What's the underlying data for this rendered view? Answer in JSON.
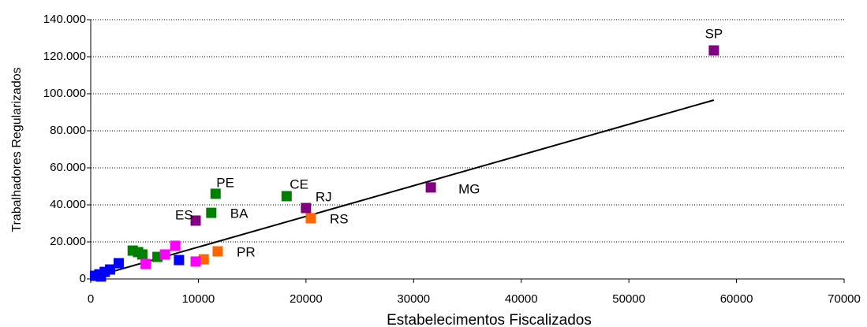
{
  "chart_data": {
    "type": "scatter",
    "x_label": "Estabelecimentos Fiscalizados",
    "y_label": "Trabalhadores Regularizados",
    "xlim": [
      0,
      70000
    ],
    "ylim": [
      0,
      140000
    ],
    "xticks": [
      0,
      10000,
      20000,
      30000,
      40000,
      50000,
      60000,
      70000
    ],
    "yticks": [
      0,
      {
        "value": 20000,
        "label": "20.000"
      },
      {
        "value": 40000,
        "label": "40.000"
      },
      {
        "value": 60000,
        "label": "60.000"
      },
      {
        "value": 80000,
        "label": "80.000"
      },
      {
        "value": 100000,
        "label": "100.000"
      },
      {
        "value": 120000,
        "label": "120.000"
      },
      {
        "value": 140000,
        "label": "140.000"
      }
    ],
    "grid": true,
    "series": [
      {
        "color": "#800080",
        "x": [
          57900,
          31600,
          20000,
          9750
        ],
        "values": [
          123400,
          49400,
          38300,
          31500
        ],
        "labels": [
          "SP",
          "MG",
          "RJ",
          "ES"
        ]
      },
      {
        "color": "#008000",
        "x": [
          18200,
          11600,
          11200,
          3900,
          4400,
          4800,
          6200
        ],
        "values": [
          44700,
          46000,
          35700,
          15300,
          14500,
          13200,
          11900
        ],
        "labels": [
          "CE",
          "PE",
          "BA",
          null,
          null,
          null,
          null
        ]
      },
      {
        "color": "#ff6600",
        "x": [
          20450,
          11800,
          10500
        ],
        "values": [
          32800,
          14900,
          10600
        ],
        "labels": [
          "RS",
          "PR",
          null
        ]
      },
      {
        "color": "#0000ff",
        "x": [
          8200,
          2600,
          1800,
          1300,
          800,
          400,
          950
        ],
        "values": [
          10200,
          8500,
          5100,
          3800,
          2500,
          1700,
          1300
        ]
      },
      {
        "color": "#ff00ff",
        "x": [
          7850,
          6900,
          5100,
          9750
        ],
        "values": [
          17900,
          13200,
          8100,
          9400
        ]
      }
    ],
    "trendline": {
      "color": "#000000",
      "x": [
        150,
        57900
      ],
      "values": [
        900,
        96600
      ]
    }
  }
}
